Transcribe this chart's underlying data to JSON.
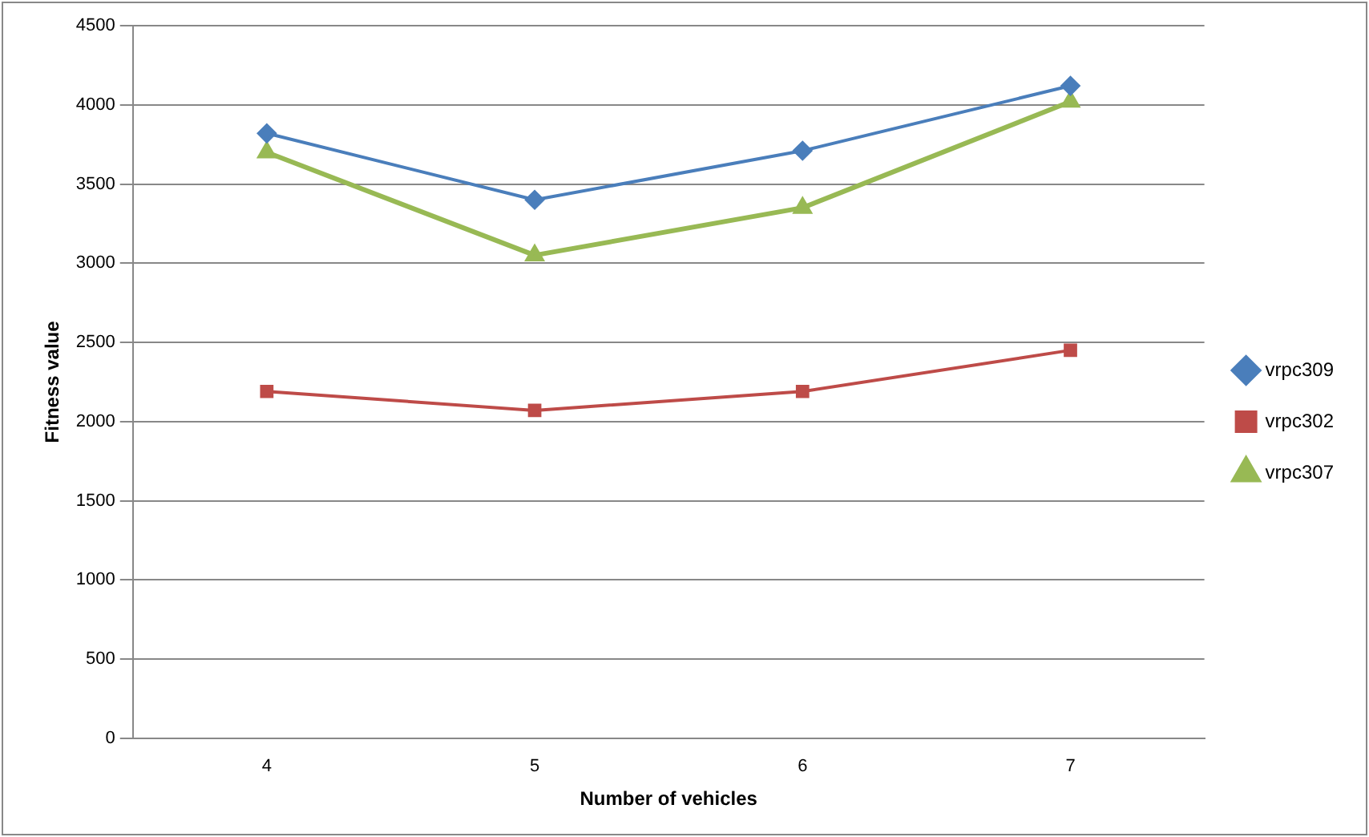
{
  "chart_data": {
    "type": "line",
    "xlabel": "Number of vehicles",
    "ylabel": "Fitness value",
    "categories": [
      "4",
      "5",
      "6",
      "7"
    ],
    "series": [
      {
        "name": "vrpc309",
        "color": "#4a7ebb",
        "marker": "diamond",
        "values": [
          3820,
          3400,
          3710,
          4120
        ]
      },
      {
        "name": "vrpc302",
        "color": "#be4b48",
        "marker": "square",
        "values": [
          2190,
          2070,
          2190,
          2450
        ]
      },
      {
        "name": "vrpc307",
        "color": "#98b954",
        "marker": "triangle",
        "values": [
          3700,
          3050,
          3350,
          4020
        ]
      }
    ],
    "ylim": [
      0,
      4500
    ],
    "yticks": [
      0,
      500,
      1000,
      1500,
      2000,
      2500,
      3000,
      3500,
      4000,
      4500
    ],
    "grid": "y",
    "legend": "right"
  }
}
